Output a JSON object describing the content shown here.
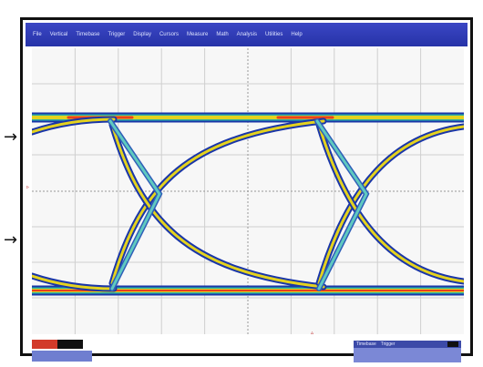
{
  "menu": {
    "items": [
      "File",
      "Vertical",
      "Timebase",
      "Trigger",
      "Display",
      "Cursors",
      "Measure",
      "Math",
      "Analysis",
      "Utilities",
      "Help"
    ]
  },
  "markers": {
    "left_arrow": "→",
    "side_mark": "▹",
    "bottom_mark": "▵"
  },
  "status": {
    "timebase_label": "Timebase",
    "trigger_label": "Trigger",
    "timestamp": "",
    "logo": ""
  },
  "colors": {
    "menubar": "#2d3bb5",
    "panel": "#6a78c8",
    "eye_outer": "#1a36a8",
    "eye_mid": "#e4d21e",
    "eye_hot": "#e8401e",
    "eye_crossing": "#4aa5a5",
    "grid": "#c8c8c8"
  }
}
